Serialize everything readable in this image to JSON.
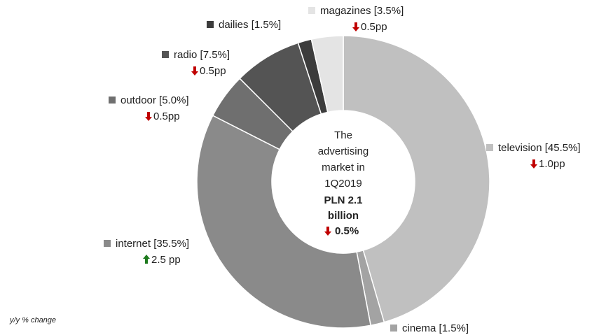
{
  "chart_data": {
    "type": "donut",
    "categories": [
      "television",
      "cinema",
      "internet",
      "outdoor",
      "radio",
      "dailies",
      "magazines"
    ],
    "values": [
      45.5,
      1.5,
      35.5,
      5.0,
      7.5,
      1.5,
      3.5
    ],
    "value_labels": [
      "[45.5%]",
      "[1.5%]",
      "[35.5%]",
      "[5.0%]",
      "[7.5%]",
      "[1.5%]",
      "[3.5%]"
    ],
    "colors": [
      "#c0c0c0",
      "#a3a3a3",
      "#8a8a8a",
      "#6f6f6f",
      "#545454",
      "#3c3c3c",
      "#e4e4e4"
    ],
    "changes": [
      {
        "label": "1.0pp",
        "direction": "down"
      },
      null,
      {
        "label": "2.5 pp",
        "direction": "up"
      },
      {
        "label": "0.5pp",
        "direction": "down"
      },
      {
        "label": "0.5pp",
        "direction": "down"
      },
      null,
      {
        "label": "0.5pp",
        "direction": "down"
      }
    ],
    "center": {
      "lines": [
        "The",
        "advertising",
        "market in",
        "1Q2019"
      ],
      "value_lines": [
        "PLN 2.1",
        "billion"
      ],
      "change": "0.5%",
      "direction": "down"
    },
    "footnote": "y/y % change"
  }
}
